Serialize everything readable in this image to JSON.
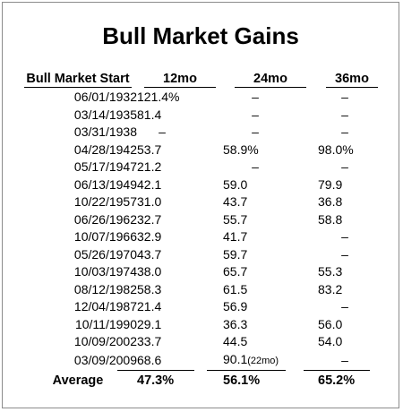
{
  "chart_data": {
    "type": "table",
    "title": "Bull Market Gains",
    "columns": [
      "Bull Market Start",
      "12mo",
      "24mo",
      "36mo"
    ],
    "rows": [
      {
        "start": "06/01/1932",
        "m12": "121.4%",
        "m24": "–",
        "m36": "–"
      },
      {
        "start": "03/14/1935",
        "m12": "81.4",
        "m24": "–",
        "m36": "–"
      },
      {
        "start": "03/31/1938",
        "m12": "–",
        "m24": "–",
        "m36": "–"
      },
      {
        "start": "04/28/1942",
        "m12": "53.7",
        "m24": "58.9%",
        "m36": "98.0%"
      },
      {
        "start": "05/17/1947",
        "m12": "21.2",
        "m24": "–",
        "m36": "–"
      },
      {
        "start": "06/13/1949",
        "m12": "42.1",
        "m24": "59.0",
        "m36": "79.9"
      },
      {
        "start": "10/22/1957",
        "m12": "31.0",
        "m24": "43.7",
        "m36": "36.8"
      },
      {
        "start": "06/26/1962",
        "m12": "32.7",
        "m24": "55.7",
        "m36": "58.8"
      },
      {
        "start": "10/07/1966",
        "m12": "32.9",
        "m24": "41.7",
        "m36": "–"
      },
      {
        "start": "05/26/1970",
        "m12": "43.7",
        "m24": "59.7",
        "m36": "–"
      },
      {
        "start": "10/03/1974",
        "m12": "38.0",
        "m24": "65.7",
        "m36": "55.3"
      },
      {
        "start": "08/12/1982",
        "m12": "58.3",
        "m24": "61.5",
        "m36": "83.2"
      },
      {
        "start": "12/04/1987",
        "m12": "21.4",
        "m24": "56.9",
        "m36": "–"
      },
      {
        "start": "10/11/1990",
        "m12": "29.1",
        "m24": "36.3",
        "m36": "56.0"
      },
      {
        "start": "10/09/2002",
        "m12": "33.7",
        "m24": "44.5",
        "m36": "54.0"
      },
      {
        "start": "03/09/2009",
        "m12": "68.6",
        "m24": "90.1",
        "m24_note": "(22mo)",
        "m36": "–"
      }
    ],
    "average": {
      "label": "Average",
      "m12": "47.3%",
      "m24": "56.1%",
      "m36": "65.2%"
    }
  }
}
